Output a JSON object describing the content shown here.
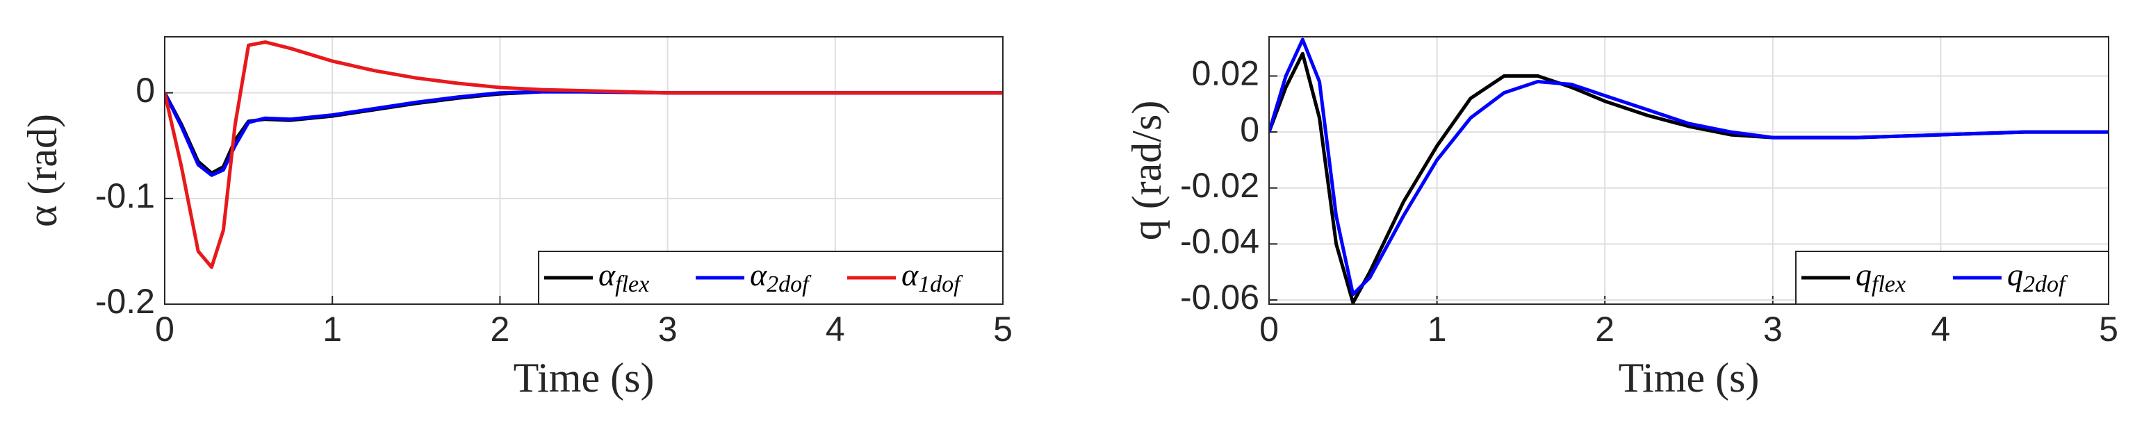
{
  "chart_data": [
    {
      "type": "line",
      "x_label": "Time (s)",
      "y_label": "α (rad)",
      "xlim": [
        0,
        5
      ],
      "xticks": [
        0,
        1,
        2,
        3,
        4,
        5
      ],
      "ylim": [
        -0.2,
        0.053
      ],
      "yticks": [
        -0.2,
        -0.1,
        0
      ],
      "grid": true,
      "legend": "lower right",
      "x": [
        0,
        0.1,
        0.2,
        0.28,
        0.35,
        0.42,
        0.5,
        0.6,
        0.75,
        1,
        1.25,
        1.5,
        1.75,
        2,
        2.25,
        2.5,
        3,
        3.5,
        4,
        4.5,
        5
      ],
      "series": [
        {
          "name": "α",
          "name_sub": "flex",
          "color": "#000000",
          "values": [
            0,
            -0.03,
            -0.065,
            -0.076,
            -0.07,
            -0.045,
            -0.027,
            -0.025,
            -0.026,
            -0.022,
            -0.016,
            -0.01,
            -0.005,
            -0.001,
            0.001,
            0.001,
            0,
            0,
            0,
            0,
            0
          ]
        },
        {
          "name": "α",
          "name_sub": "2dof",
          "color": "#0000ff",
          "values": [
            0,
            -0.032,
            -0.068,
            -0.078,
            -0.073,
            -0.05,
            -0.028,
            -0.024,
            -0.025,
            -0.021,
            -0.015,
            -0.009,
            -0.004,
            0,
            0.001,
            0.001,
            0,
            0,
            0,
            0,
            0
          ]
        },
        {
          "name": "α",
          "name_sub": "1dof",
          "color": "#e8191c",
          "values": [
            0,
            -0.07,
            -0.15,
            -0.165,
            -0.13,
            -0.03,
            0.045,
            0.048,
            0.042,
            0.03,
            0.021,
            0.014,
            0.009,
            0.005,
            0.003,
            0.002,
            0,
            0,
            0,
            0,
            0
          ]
        }
      ]
    },
    {
      "type": "line",
      "x_label": "Time (s)",
      "y_label": "q (rad/s)",
      "xlim": [
        0,
        5
      ],
      "xticks": [
        0,
        1,
        2,
        3,
        4,
        5
      ],
      "ylim": [
        -0.0615,
        0.034
      ],
      "yticks": [
        -0.06,
        -0.04,
        -0.02,
        0,
        0.02
      ],
      "grid": true,
      "legend": "lower right",
      "x": [
        0,
        0.1,
        0.2,
        0.3,
        0.4,
        0.5,
        0.6,
        0.8,
        1,
        1.2,
        1.4,
        1.6,
        1.8,
        2,
        2.25,
        2.5,
        2.75,
        3,
        3.5,
        4,
        4.5,
        5
      ],
      "series": [
        {
          "name": "q",
          "name_sub": "flex",
          "color": "#000000",
          "values": [
            0,
            0.016,
            0.028,
            0.005,
            -0.04,
            -0.061,
            -0.05,
            -0.025,
            -0.005,
            0.012,
            0.02,
            0.02,
            0.016,
            0.011,
            0.006,
            0.002,
            -0.001,
            -0.002,
            -0.002,
            -0.001,
            0,
            0
          ]
        },
        {
          "name": "q",
          "name_sub": "2dof",
          "color": "#0000ff",
          "values": [
            0,
            0.02,
            0.033,
            0.018,
            -0.03,
            -0.058,
            -0.052,
            -0.03,
            -0.01,
            0.005,
            0.014,
            0.018,
            0.017,
            0.013,
            0.008,
            0.003,
            0,
            -0.002,
            -0.002,
            -0.001,
            0,
            0
          ]
        }
      ]
    }
  ]
}
